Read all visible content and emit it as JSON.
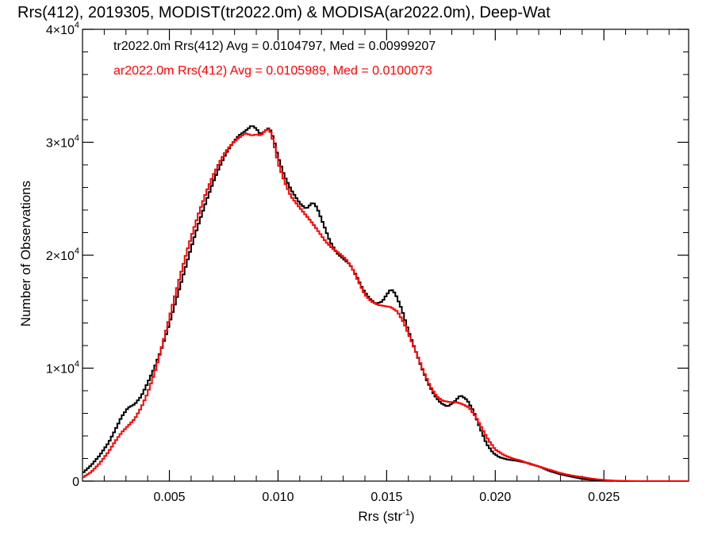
{
  "chart_data": {
    "type": "line",
    "title": "Rrs(412), 2019305, MODIST(tr2022.0m) & MODISA(ar2022.0m), Deep-Wat",
    "xlabel": "Rrs (str",
    "xlabel_sup": "-1",
    "xlabel_suffix": ")",
    "ylabel": "Number of Observations",
    "xlim": [
      0.001,
      0.0289
    ],
    "ylim": [
      0,
      40000
    ],
    "x_ticks": [
      {
        "value": 0.005,
        "label": "0.005"
      },
      {
        "value": 0.01,
        "label": "0.010"
      },
      {
        "value": 0.015,
        "label": "0.015"
      },
      {
        "value": 0.02,
        "label": "0.020"
      },
      {
        "value": 0.025,
        "label": "0.025"
      }
    ],
    "y_ticks": [
      {
        "value": 0,
        "mant": "0",
        "exp": ""
      },
      {
        "value": 10000,
        "mant": "1×10",
        "exp": "4"
      },
      {
        "value": 20000,
        "mant": "2×10",
        "exp": "4"
      },
      {
        "value": 30000,
        "mant": "3×10",
        "exp": "4"
      },
      {
        "value": 40000,
        "mant": "4×10",
        "exp": "4"
      }
    ],
    "grid": false,
    "legend_position": "top-left",
    "series": [
      {
        "legend": "tr2022.0m Rrs(412) Avg = 0.0104797, Med = 0.00999207",
        "color": "#000000",
        "points": [
          [
            0.001,
            700
          ],
          [
            0.0014,
            1400
          ],
          [
            0.0018,
            2300
          ],
          [
            0.0022,
            3400
          ],
          [
            0.0025,
            4500
          ],
          [
            0.0028,
            5700
          ],
          [
            0.0031,
            6500
          ],
          [
            0.0034,
            6800
          ],
          [
            0.0037,
            7500
          ],
          [
            0.004,
            8700
          ],
          [
            0.0043,
            10000
          ],
          [
            0.0046,
            11500
          ],
          [
            0.0049,
            13300
          ],
          [
            0.0052,
            15300
          ],
          [
            0.0055,
            17300
          ],
          [
            0.0058,
            19300
          ],
          [
            0.0061,
            21300
          ],
          [
            0.0064,
            23100
          ],
          [
            0.0067,
            24800
          ],
          [
            0.007,
            26400
          ],
          [
            0.0073,
            27800
          ],
          [
            0.0076,
            29000
          ],
          [
            0.0079,
            29900
          ],
          [
            0.0082,
            30600
          ],
          [
            0.0085,
            31000
          ],
          [
            0.0088,
            31500
          ],
          [
            0.009,
            31200
          ],
          [
            0.0092,
            30700
          ],
          [
            0.0094,
            31000
          ],
          [
            0.0096,
            31300
          ],
          [
            0.0098,
            30300
          ],
          [
            0.01,
            28700
          ],
          [
            0.0103,
            27000
          ],
          [
            0.0106,
            25800
          ],
          [
            0.011,
            24600
          ],
          [
            0.0113,
            24100
          ],
          [
            0.0116,
            24700
          ],
          [
            0.0118,
            24200
          ],
          [
            0.0121,
            22700
          ],
          [
            0.0124,
            21200
          ],
          [
            0.0127,
            20200
          ],
          [
            0.013,
            19700
          ],
          [
            0.0133,
            19200
          ],
          [
            0.0136,
            18200
          ],
          [
            0.0139,
            17000
          ],
          [
            0.0142,
            16200
          ],
          [
            0.0145,
            15700
          ],
          [
            0.0148,
            15900
          ],
          [
            0.015,
            16500
          ],
          [
            0.0152,
            17000
          ],
          [
            0.0154,
            16600
          ],
          [
            0.0157,
            15200
          ],
          [
            0.016,
            13300
          ],
          [
            0.0163,
            11700
          ],
          [
            0.0166,
            10100
          ],
          [
            0.0169,
            8700
          ],
          [
            0.0172,
            7600
          ],
          [
            0.0175,
            6900
          ],
          [
            0.0178,
            6600
          ],
          [
            0.0181,
            7000
          ],
          [
            0.0184,
            7600
          ],
          [
            0.0187,
            7200
          ],
          [
            0.019,
            6200
          ],
          [
            0.0193,
            4700
          ],
          [
            0.0196,
            3300
          ],
          [
            0.0199,
            2500
          ],
          [
            0.0202,
            2100
          ],
          [
            0.0206,
            1900
          ],
          [
            0.021,
            1800
          ],
          [
            0.0215,
            1600
          ],
          [
            0.022,
            1300
          ],
          [
            0.0225,
            900
          ],
          [
            0.023,
            600
          ],
          [
            0.0235,
            400
          ],
          [
            0.024,
            200
          ],
          [
            0.0245,
            100
          ],
          [
            0.025,
            30
          ],
          [
            0.026,
            0
          ],
          [
            0.0289,
            0
          ]
        ]
      },
      {
        "legend": "ar2022.0m Rrs(412) Avg = 0.0105989, Med = 0.0100073",
        "color": "#ff0000",
        "points": [
          [
            0.001,
            300
          ],
          [
            0.0014,
            800
          ],
          [
            0.0018,
            1600
          ],
          [
            0.0022,
            2600
          ],
          [
            0.0025,
            3500
          ],
          [
            0.0028,
            4300
          ],
          [
            0.0031,
            4900
          ],
          [
            0.0034,
            5500
          ],
          [
            0.0037,
            6500
          ],
          [
            0.004,
            7800
          ],
          [
            0.0043,
            9500
          ],
          [
            0.0046,
            11500
          ],
          [
            0.0049,
            13700
          ],
          [
            0.0052,
            16000
          ],
          [
            0.0055,
            18200
          ],
          [
            0.0058,
            20300
          ],
          [
            0.0061,
            22200
          ],
          [
            0.0064,
            24000
          ],
          [
            0.0067,
            25600
          ],
          [
            0.007,
            27000
          ],
          [
            0.0073,
            28200
          ],
          [
            0.0076,
            29200
          ],
          [
            0.0079,
            29900
          ],
          [
            0.0082,
            30400
          ],
          [
            0.0085,
            30800
          ],
          [
            0.0088,
            30600
          ],
          [
            0.009,
            30700
          ],
          [
            0.0092,
            30600
          ],
          [
            0.0094,
            31000
          ],
          [
            0.0096,
            31200
          ],
          [
            0.0098,
            30000
          ],
          [
            0.01,
            28200
          ],
          [
            0.0103,
            26500
          ],
          [
            0.0106,
            25200
          ],
          [
            0.011,
            24200
          ],
          [
            0.0113,
            23500
          ],
          [
            0.0116,
            22800
          ],
          [
            0.0119,
            22000
          ],
          [
            0.0122,
            21200
          ],
          [
            0.0125,
            20600
          ],
          [
            0.0128,
            20200
          ],
          [
            0.0131,
            19700
          ],
          [
            0.0134,
            18900
          ],
          [
            0.0137,
            17700
          ],
          [
            0.014,
            16500
          ],
          [
            0.0143,
            15900
          ],
          [
            0.0146,
            15600
          ],
          [
            0.0149,
            15500
          ],
          [
            0.0152,
            15400
          ],
          [
            0.0155,
            15000
          ],
          [
            0.0158,
            14000
          ],
          [
            0.0161,
            12600
          ],
          [
            0.0164,
            11200
          ],
          [
            0.0167,
            9700
          ],
          [
            0.017,
            8400
          ],
          [
            0.0173,
            7500
          ],
          [
            0.0176,
            7100
          ],
          [
            0.0179,
            7000
          ],
          [
            0.0182,
            7000
          ],
          [
            0.0185,
            6800
          ],
          [
            0.0188,
            6500
          ],
          [
            0.0191,
            5700
          ],
          [
            0.0194,
            4600
          ],
          [
            0.0197,
            3600
          ],
          [
            0.02,
            2800
          ],
          [
            0.0204,
            2300
          ],
          [
            0.0208,
            2000
          ],
          [
            0.0212,
            1800
          ],
          [
            0.0216,
            1500
          ],
          [
            0.022,
            1300
          ],
          [
            0.0225,
            1000
          ],
          [
            0.023,
            700
          ],
          [
            0.0235,
            500
          ],
          [
            0.024,
            350
          ],
          [
            0.0245,
            200
          ],
          [
            0.025,
            100
          ],
          [
            0.0255,
            40
          ],
          [
            0.0265,
            0
          ],
          [
            0.0289,
            0
          ]
        ]
      }
    ]
  }
}
